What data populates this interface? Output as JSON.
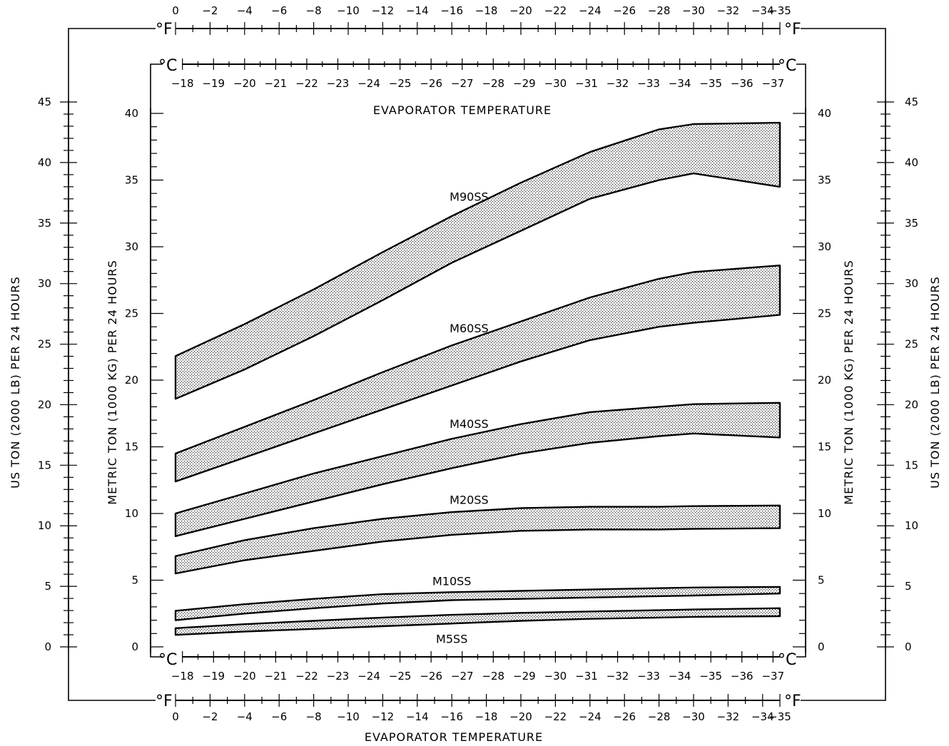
{
  "chart_data": {
    "type": "area",
    "title": "",
    "x_axis_top_f": {
      "unit": "°F",
      "ticks": [
        0,
        -2,
        -4,
        -6,
        -8,
        -10,
        -12,
        -14,
        -16,
        -18,
        -20,
        -22,
        -24,
        -26,
        -28,
        -30,
        -32,
        -34,
        -35
      ]
    },
    "x_axis_c": {
      "unit": "°C",
      "ticks": [
        -18,
        -19,
        -20,
        -21,
        -22,
        -23,
        -24,
        -25,
        -26,
        -27,
        -28,
        -29,
        -30,
        -31,
        -32,
        -33,
        -34,
        -35,
        -36,
        -37
      ]
    },
    "x_axis_bottom_f": {
      "unit": "°F",
      "ticks": [
        0,
        -2,
        -4,
        -6,
        -8,
        -10,
        -12,
        -14,
        -16,
        -18,
        -20,
        -22,
        -24,
        -26,
        -28,
        -30,
        -32,
        -34,
        -35
      ]
    },
    "xlabel_inner": "EVAPORATOR TEMPERATURE",
    "xlabel_bottom": "EVAPORATOR TEMPERATURE",
    "ylabel_metric": "METRIC TON (1000 KG) PER 24 HOURS",
    "ylabel_us": "US TON (2000 LB) PER 24 HOURS",
    "ylim_metric": [
      0,
      40
    ],
    "ylim_us": [
      0,
      45
    ],
    "metric_ticks": [
      0,
      5,
      10,
      15,
      20,
      25,
      30,
      35,
      40
    ],
    "us_ticks": [
      0,
      5,
      10,
      15,
      20,
      25,
      30,
      35,
      40,
      45
    ],
    "x_unit": "°F",
    "series": [
      {
        "name": "M90SS",
        "x": [
          0,
          -4,
          -8,
          -12,
          -16,
          -20,
          -24,
          -28,
          -30,
          -35
        ],
        "upper": [
          21.8,
          24.2,
          26.8,
          29.6,
          32.3,
          34.8,
          37.1,
          38.8,
          39.2,
          39.3
        ],
        "lower": [
          18.6,
          20.8,
          23.3,
          26.0,
          28.8,
          31.2,
          33.6,
          35.0,
          35.5,
          34.5
        ]
      },
      {
        "name": "M60SS",
        "x": [
          0,
          -4,
          -8,
          -12,
          -16,
          -20,
          -24,
          -28,
          -30,
          -35
        ],
        "upper": [
          14.5,
          16.5,
          18.5,
          20.6,
          22.6,
          24.4,
          26.2,
          27.6,
          28.1,
          28.6
        ],
        "lower": [
          12.4,
          14.2,
          16.0,
          17.8,
          19.6,
          21.4,
          23.0,
          24.0,
          24.3,
          24.9
        ]
      },
      {
        "name": "M40SS",
        "x": [
          0,
          -4,
          -8,
          -12,
          -16,
          -20,
          -24,
          -28,
          -30,
          -35
        ],
        "upper": [
          10.0,
          11.5,
          13.0,
          14.3,
          15.6,
          16.7,
          17.6,
          18.0,
          18.2,
          18.3
        ],
        "lower": [
          8.3,
          9.6,
          10.9,
          12.2,
          13.4,
          14.5,
          15.3,
          15.8,
          16.0,
          15.7
        ]
      },
      {
        "name": "M20SS",
        "x": [
          0,
          -4,
          -8,
          -12,
          -16,
          -20,
          -24,
          -28,
          -30,
          -35
        ],
        "upper": [
          6.8,
          8.0,
          8.9,
          9.6,
          10.1,
          10.4,
          10.5,
          10.5,
          10.55,
          10.6
        ],
        "lower": [
          5.5,
          6.5,
          7.2,
          7.9,
          8.4,
          8.7,
          8.8,
          8.8,
          8.85,
          8.9
        ]
      },
      {
        "name": "M10SS",
        "x": [
          0,
          -4,
          -8,
          -12,
          -16,
          -20,
          -24,
          -28,
          -30,
          -35
        ],
        "upper": [
          2.7,
          3.2,
          3.6,
          3.95,
          4.1,
          4.2,
          4.3,
          4.4,
          4.45,
          4.5
        ],
        "lower": [
          2.0,
          2.5,
          2.9,
          3.25,
          3.5,
          3.6,
          3.7,
          3.8,
          3.85,
          4.0
        ]
      },
      {
        "name": "M5SS",
        "x": [
          0,
          -4,
          -8,
          -12,
          -16,
          -20,
          -24,
          -28,
          -30,
          -35
        ],
        "upper": [
          1.4,
          1.7,
          1.95,
          2.2,
          2.4,
          2.55,
          2.65,
          2.75,
          2.8,
          2.9
        ],
        "lower": [
          0.9,
          1.15,
          1.35,
          1.55,
          1.75,
          1.95,
          2.1,
          2.2,
          2.25,
          2.3
        ]
      }
    ]
  }
}
